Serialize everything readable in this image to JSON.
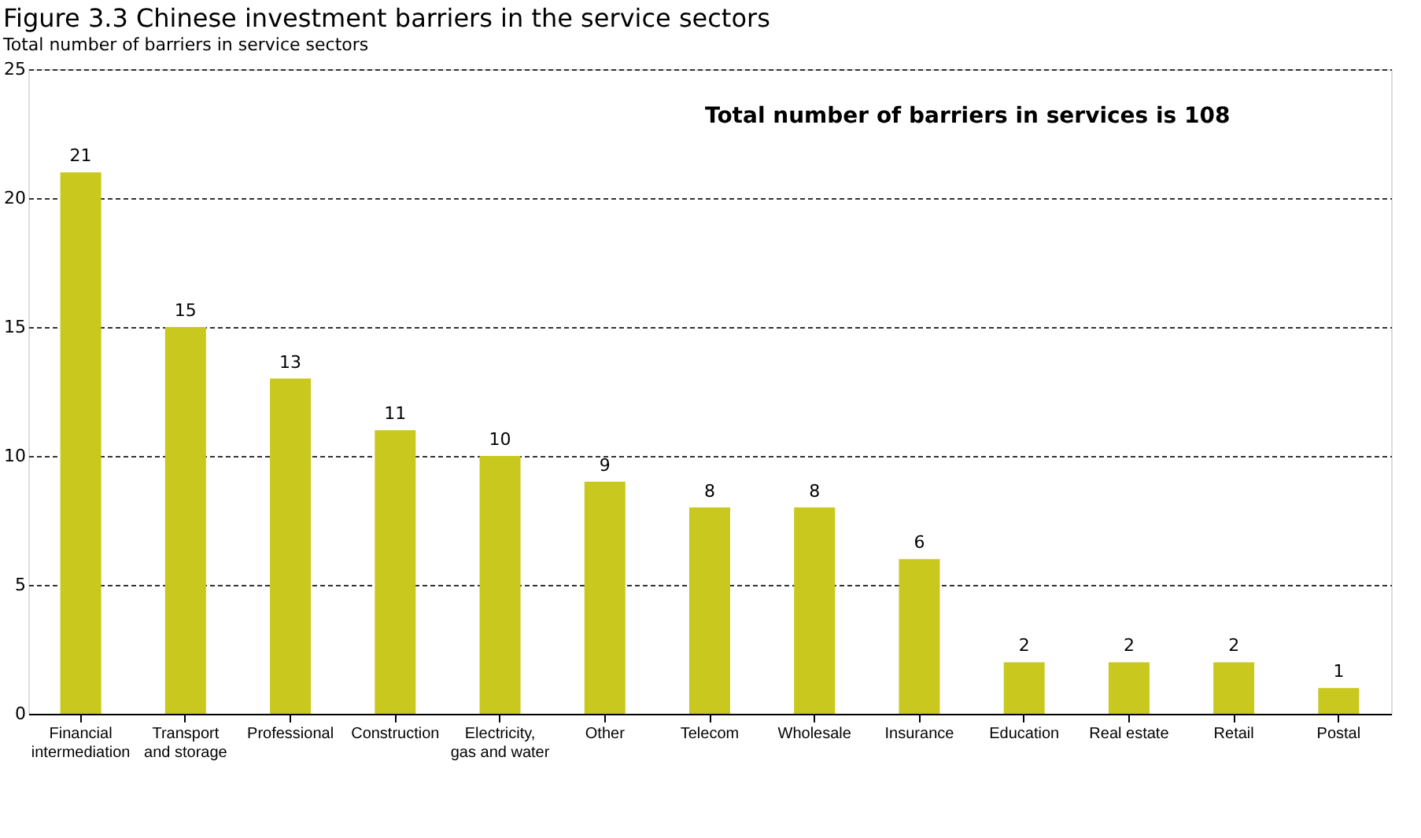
{
  "chart_data": {
    "type": "bar",
    "title": "Figure 3.3 Chinese investment barriers in the service sectors",
    "ylabel": "Total number of barriers in service sectors",
    "categories": [
      "Financial\nintermediation",
      "Transport\nand storage",
      "Professional",
      "Construction",
      "Electricity,\ngas and water",
      "Other",
      "Telecom",
      "Wholesale",
      "Insurance",
      "Education",
      "Real estate",
      "Retail",
      "Postal"
    ],
    "values": [
      21,
      15,
      13,
      11,
      10,
      9,
      8,
      8,
      6,
      2,
      2,
      2,
      1
    ],
    "color": "#c8c81e",
    "ylim": [
      0,
      25
    ],
    "yticks": [
      0,
      5,
      10,
      15,
      20,
      25
    ],
    "grid": "y",
    "data_labels": true,
    "annotations": [
      "Total  number of barriers in services is 108"
    ]
  }
}
